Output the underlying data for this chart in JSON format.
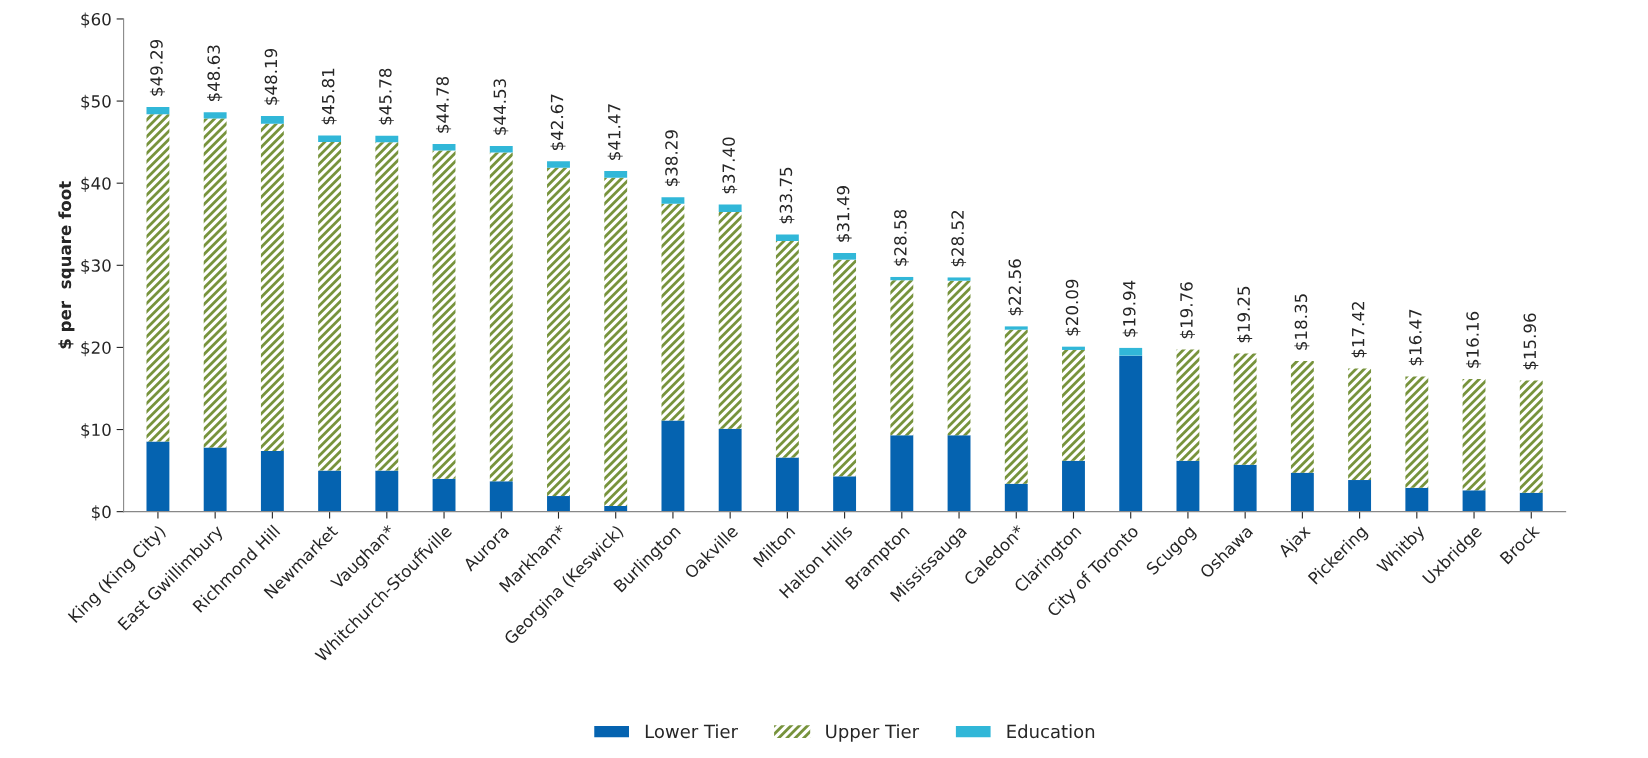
{
  "chart_data": {
    "type": "bar",
    "stacked": true,
    "ylabel": "$ per  square foot",
    "categories": [
      "King (King City)",
      "East Gwillimbury",
      "Richmond Hill",
      "Newmarket",
      "Vaughan*",
      "Whitchurch-Stouffville",
      "Aurora",
      "Markham*",
      "Georgina (Keswick)",
      "Burlington",
      "Oakville",
      "Milton",
      "Halton Hills",
      "Brampton",
      "Mississauga",
      "Caledon*",
      "Clarington",
      "City of Toronto",
      "Scugog",
      "Oshawa",
      "Ajax",
      "Pickering",
      "Whitby",
      "Uxbridge",
      "Brock"
    ],
    "series": [
      {
        "name": "Lower Tier",
        "color": "#0563b0",
        "values": [
          8.55,
          7.8,
          7.4,
          5.0,
          5.0,
          4.0,
          3.7,
          1.9,
          0.7,
          11.1,
          10.1,
          6.6,
          4.3,
          9.3,
          9.3,
          3.4,
          6.2,
          19.0,
          6.2,
          5.7,
          4.75,
          3.85,
          2.9,
          2.6,
          2.3
        ]
      },
      {
        "name": "Upper Tier",
        "color": "#77933c",
        "values": [
          39.84,
          40.08,
          39.84,
          40.01,
          39.98,
          39.98,
          40.03,
          39.97,
          39.97,
          26.39,
          26.4,
          26.35,
          26.39,
          18.88,
          18.82,
          18.76,
          13.49,
          0,
          13.56,
          13.55,
          13.6,
          13.57,
          13.57,
          13.56,
          13.66
        ]
      },
      {
        "name": "Education",
        "color": "#31b7d8",
        "values": [
          0.9,
          0.75,
          0.95,
          0.8,
          0.8,
          0.8,
          0.8,
          0.8,
          0.8,
          0.8,
          0.9,
          0.8,
          0.8,
          0.4,
          0.4,
          0.4,
          0.4,
          0.94,
          0,
          0,
          0,
          0,
          0,
          0,
          0
        ]
      }
    ],
    "totals": [
      "$49.29",
      "$48.63",
      "$48.19",
      "$45.81",
      "$45.78",
      "$44.78",
      "$44.53",
      "$42.67",
      "$41.47",
      "$38.29",
      "$37.40",
      "$33.75",
      "$31.49",
      "$28.58",
      "$28.52",
      "$22.56",
      "$20.09",
      "$19.94",
      "$19.76",
      "$19.25",
      "$18.35",
      "$17.42",
      "$16.47",
      "$16.16",
      "$15.96"
    ],
    "ylim": [
      0,
      60
    ],
    "yticks": [
      {
        "value": 0,
        "label": "$0"
      },
      {
        "value": 10,
        "label": "$10"
      },
      {
        "value": 20,
        "label": "$20"
      },
      {
        "value": 30,
        "label": "$30"
      },
      {
        "value": 40,
        "label": "$40"
      },
      {
        "value": 50,
        "label": "$50"
      },
      {
        "value": 60,
        "label": "$60"
      }
    ],
    "grid": false,
    "legend": "bottom"
  }
}
